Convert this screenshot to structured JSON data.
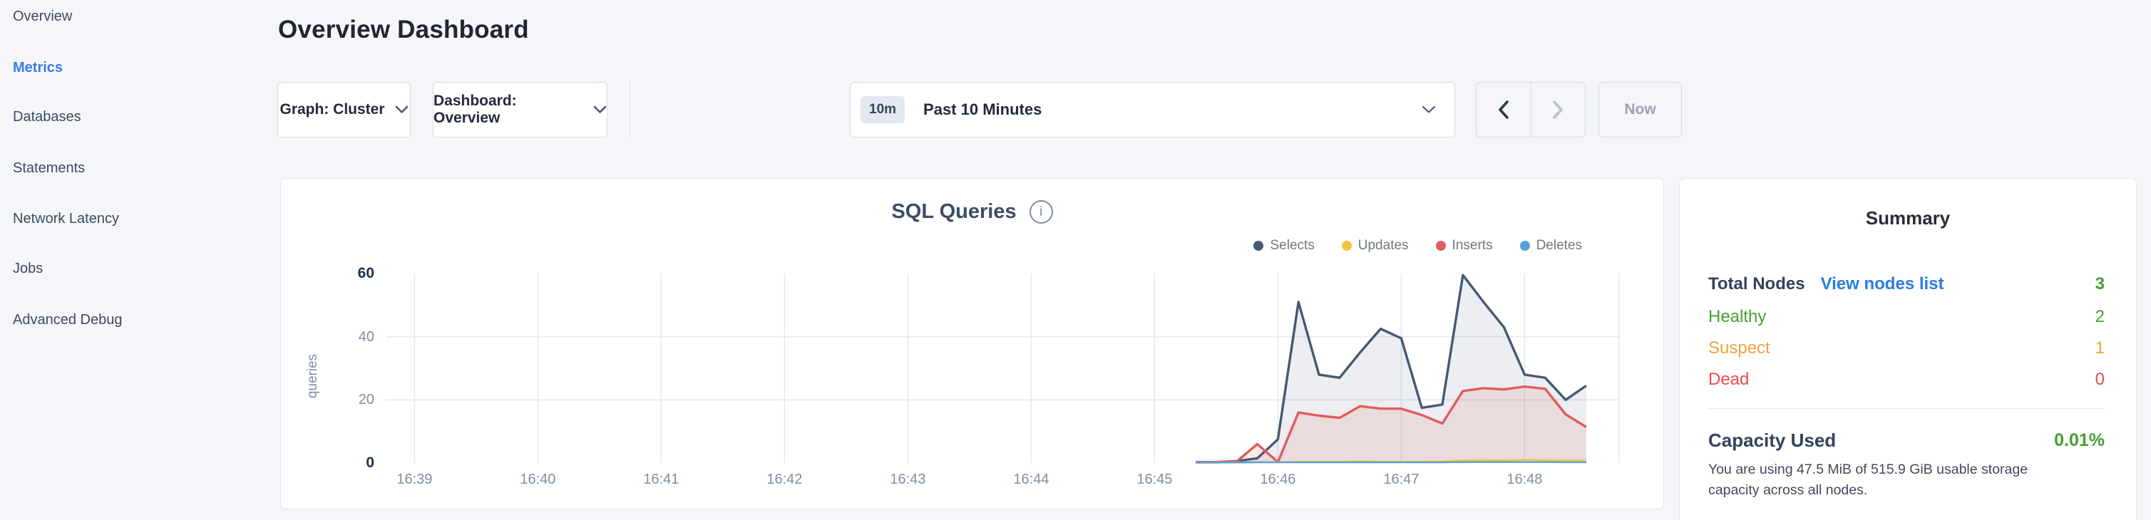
{
  "sidebar": {
    "items": [
      {
        "label": "Overview",
        "active": false
      },
      {
        "label": "Metrics",
        "active": true
      },
      {
        "label": "Databases",
        "active": false
      },
      {
        "label": "Statements",
        "active": false
      },
      {
        "label": "Network Latency",
        "active": false
      },
      {
        "label": "Jobs",
        "active": false
      },
      {
        "label": "Advanced Debug",
        "active": false
      }
    ]
  },
  "header": {
    "title": "Overview Dashboard"
  },
  "toolbar": {
    "graph_dropdown": "Graph: Cluster",
    "dashboard_dropdown": "Dashboard: Overview",
    "time_selector": {
      "badge": "10m",
      "label": "Past 10 Minutes"
    },
    "now_button": "Now"
  },
  "chart_card": {
    "title": "SQL Queries"
  },
  "chart_data": {
    "type": "area",
    "title": "SQL Queries",
    "ylabel": "queries",
    "ylim": [
      0,
      60
    ],
    "yticks": [
      0,
      20,
      40,
      60
    ],
    "yticks_emphasized": [
      0,
      60
    ],
    "grid": true,
    "legend_position": "top-right",
    "x_ticks": [
      "16:39",
      "16:40",
      "16:41",
      "16:42",
      "16:43",
      "16:44",
      "16:45",
      "16:46",
      "16:47",
      "16:48"
    ],
    "x_domain": [
      "16:38:46",
      "16:48:46"
    ],
    "x": [
      "16:45:20",
      "16:45:30",
      "16:45:40",
      "16:45:50",
      "16:46:00",
      "16:46:10",
      "16:46:20",
      "16:46:30",
      "16:46:40",
      "16:46:50",
      "16:47:00",
      "16:47:10",
      "16:47:20",
      "16:47:30",
      "16:47:40",
      "16:47:50",
      "16:48:00",
      "16:48:10",
      "16:48:20",
      "16:48:30"
    ],
    "series": [
      {
        "name": "Selects",
        "color": "#475872",
        "fill": "rgba(71,88,114,0.10)",
        "values": [
          0.3,
          0.3,
          0.6,
          1.5,
          7.5,
          51,
          28,
          27,
          35,
          42.5,
          39.5,
          17.5,
          18.5,
          59.5,
          51,
          43,
          28,
          27,
          20,
          24.5
        ]
      },
      {
        "name": "Updates",
        "color": "#f1c440",
        "fill": null,
        "values": [
          0.2,
          0.2,
          0.2,
          0.3,
          0.3,
          0.4,
          0.4,
          0.4,
          0.5,
          0.4,
          0.4,
          0.4,
          0.5,
          0.8,
          0.9,
          0.8,
          1.0,
          0.9,
          0.8,
          0.8
        ]
      },
      {
        "name": "Inserts",
        "color": "#e05c5c",
        "fill": "rgba(224,92,92,0.13)",
        "values": [
          0.2,
          0.2,
          0.5,
          6,
          0.3,
          16,
          15,
          14.3,
          18,
          17.2,
          17.2,
          15.2,
          12.5,
          22.8,
          23.7,
          23.3,
          24.2,
          23.5,
          15.4,
          11.4
        ]
      },
      {
        "name": "Deletes",
        "color": "#59a0d6",
        "fill": null,
        "values": [
          0.15,
          0.15,
          0.15,
          0.2,
          0.2,
          0.2,
          0.2,
          0.2,
          0.25,
          0.2,
          0.2,
          0.2,
          0.2,
          0.3,
          0.3,
          0.3,
          0.3,
          0.3,
          0.25,
          0.25
        ]
      }
    ]
  },
  "summary": {
    "title": "Summary",
    "total_nodes_label": "Total Nodes",
    "view_nodes_link": "View nodes list",
    "total_nodes_value": "3",
    "rows": [
      {
        "label": "Healthy",
        "value": "2",
        "color": "#46a032"
      },
      {
        "label": "Suspect",
        "value": "1",
        "color": "#f0a43c"
      },
      {
        "label": "Dead",
        "value": "0",
        "color": "#e84d4d"
      }
    ],
    "capacity_label": "Capacity Used",
    "capacity_value": "0.01%",
    "capacity_desc": "You are using 47.5 MiB of 515.9 GiB usable storage capacity across all nodes."
  },
  "colors": {
    "accent_blue": "#3b7ce2",
    "link_blue": "#2a7de1",
    "green": "#46a032",
    "orange": "#f0a43c",
    "red": "#e84d4d",
    "grid": "#e5e9f0",
    "tick_text": "#7e8da6"
  }
}
